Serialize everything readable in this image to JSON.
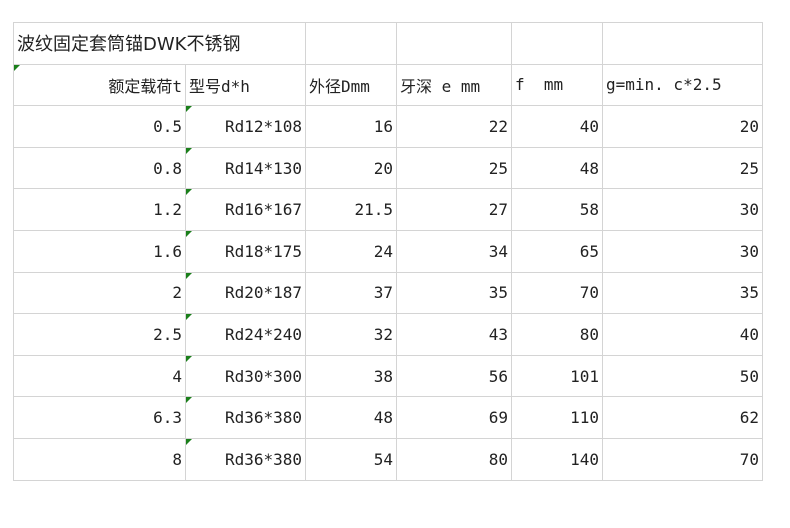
{
  "title": "波纹固定套筒锚DWK不锈钢",
  "headers": [
    "额定载荷t",
    "型号d*h",
    "外径Dmm",
    "牙深 e mm",
    "f  mm",
    "g=min. c*2.5"
  ],
  "rows": [
    [
      "0.5",
      "Rd12*108",
      "16",
      "22",
      "40",
      "20"
    ],
    [
      "0.8",
      "Rd14*130",
      "20",
      "25",
      "48",
      "25"
    ],
    [
      "1.2",
      "Rd16*167",
      "21.5",
      "27",
      "58",
      "30"
    ],
    [
      "1.6",
      "Rd18*175",
      "24",
      "34",
      "65",
      "30"
    ],
    [
      "2",
      "Rd20*187",
      "37",
      "35",
      "70",
      "35"
    ],
    [
      "2.5",
      "Rd24*240",
      "32",
      "43",
      "80",
      "40"
    ],
    [
      "4",
      "Rd30*300",
      "38",
      "56",
      "101",
      "50"
    ],
    [
      "6.3",
      "Rd36*380",
      "48",
      "69",
      "110",
      "62"
    ],
    [
      "8",
      "Rd36*380",
      "54",
      "80",
      "140",
      "70"
    ]
  ],
  "colors": {
    "grid": "#d4d4d4",
    "text_indicator": "#1a7f1a"
  }
}
